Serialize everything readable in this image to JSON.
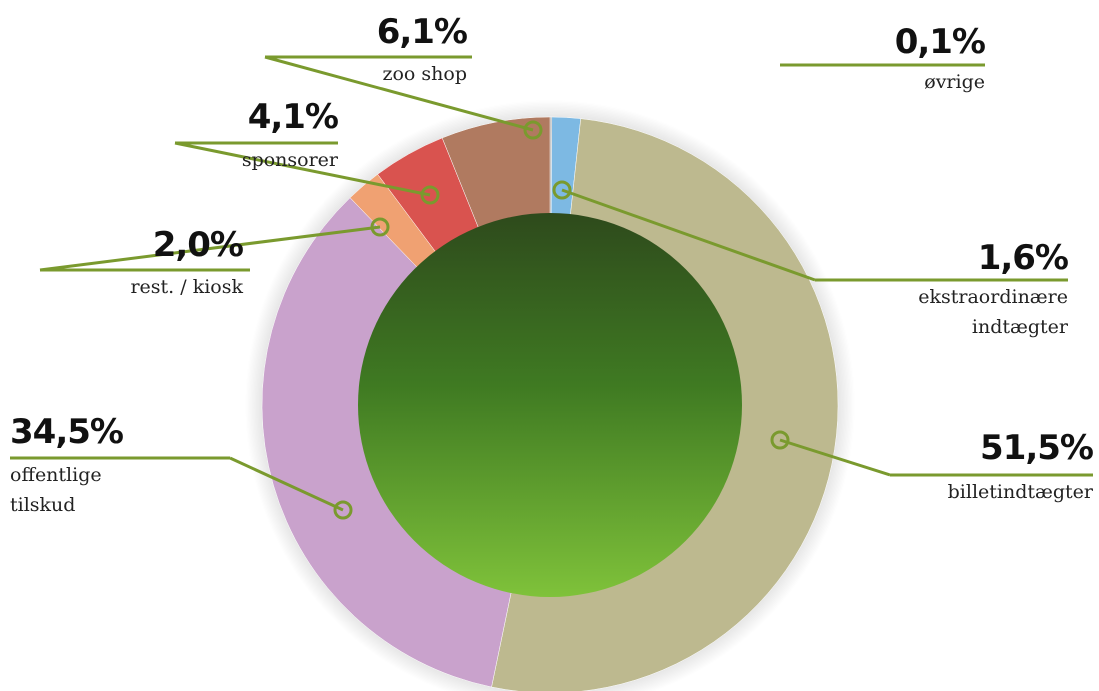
{
  "chart_data": {
    "type": "pie",
    "categories": [
      "øvrige",
      "ekstraordinære indtægter",
      "billetindtægter",
      "offentlige tilskud",
      "rest. / kiosk",
      "sponsorer",
      "zoo shop"
    ],
    "values": [
      0.1,
      1.6,
      51.5,
      34.5,
      2.0,
      4.1,
      6.1
    ],
    "value_labels": [
      "0,1%",
      "1,6%",
      "51,5%",
      "34,5%",
      "2,0%",
      "4,1%",
      "6,1%"
    ],
    "colors": [
      "#a9a9a9",
      "#7db9e3",
      "#bdb98f",
      "#c9a2cc",
      "#f0a172",
      "#d9534f",
      "#b07a60"
    ]
  }
}
